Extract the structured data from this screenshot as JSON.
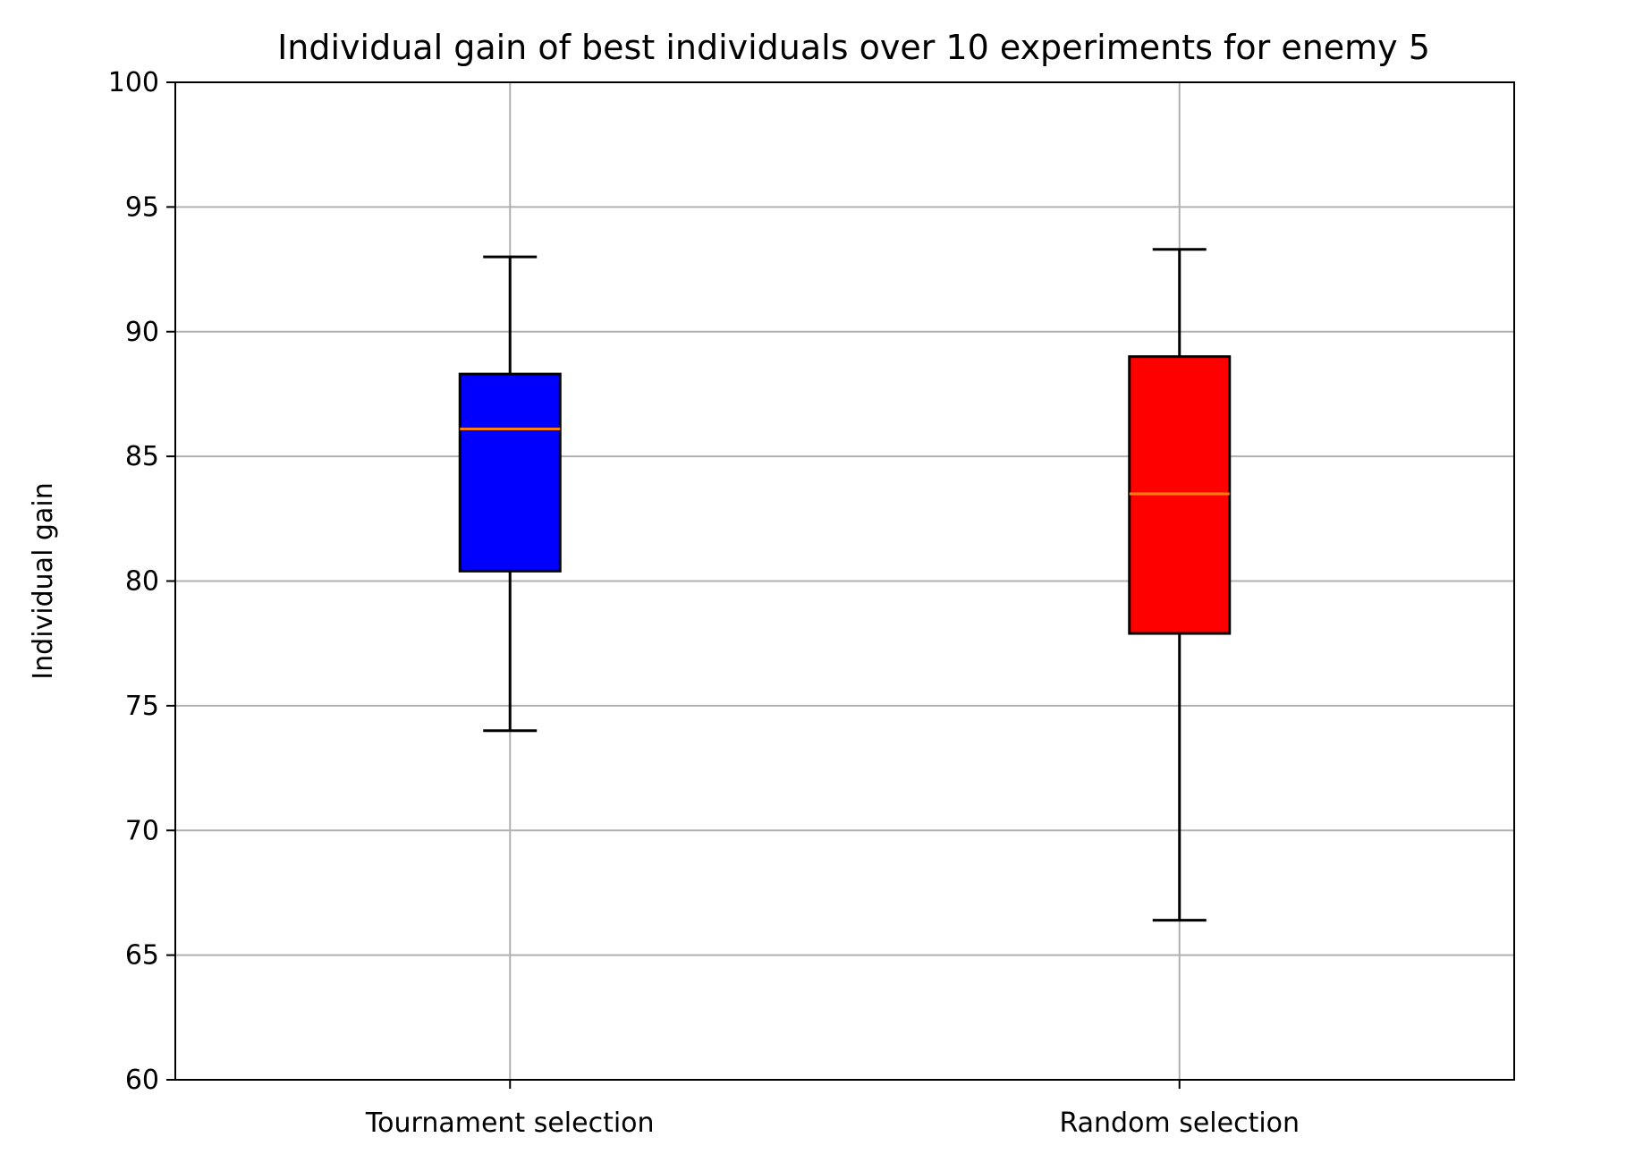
{
  "chart_data": {
    "type": "box",
    "title": "Individual gain of best individuals over 10 experiments for enemy 5",
    "xlabel": "",
    "ylabel": "Individual gain",
    "ylim": [
      60,
      100
    ],
    "yticks": [
      60,
      65,
      70,
      75,
      80,
      85,
      90,
      95,
      100
    ],
    "grid": true,
    "categories": [
      "Tournament selection",
      "Random selection"
    ],
    "boxes": [
      {
        "category": "Tournament selection",
        "whisker_low": 74.0,
        "q1": 80.4,
        "median": 86.1,
        "q3": 88.3,
        "whisker_high": 93.0,
        "color": "#0000ff"
      },
      {
        "category": "Random selection",
        "whisker_low": 66.4,
        "q1": 77.9,
        "median": 83.5,
        "q3": 89.0,
        "whisker_high": 93.3,
        "color": "#ff0000"
      }
    ],
    "colors": {
      "median_line": "#ff7f0e",
      "grid": "#b0b0b0"
    }
  }
}
